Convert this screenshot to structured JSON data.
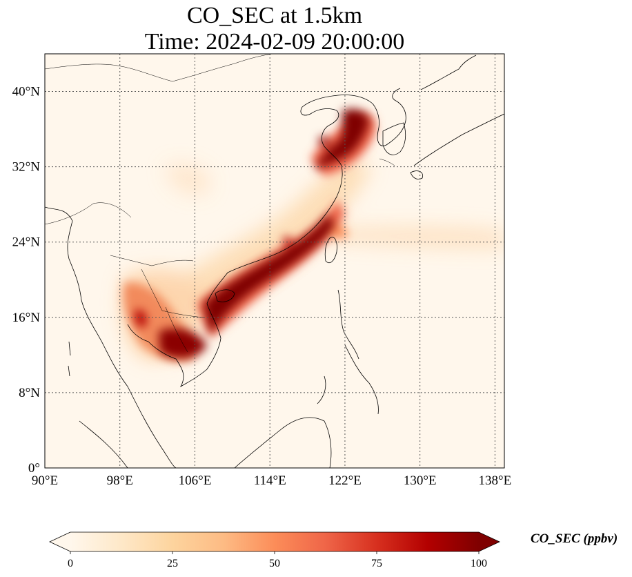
{
  "title": {
    "line1": "CO_SEC at 1.5km",
    "line2": "Time: 2024-02-09 20:00:00"
  },
  "map": {
    "variable": "CO_SEC",
    "level": "1.5km",
    "lon_range": [
      90,
      139
    ],
    "lat_range": [
      0,
      44
    ],
    "lon_ticks": [
      {
        "value": 90,
        "label": "90°E"
      },
      {
        "value": 98,
        "label": "98°E"
      },
      {
        "value": 106,
        "label": "106°E"
      },
      {
        "value": 114,
        "label": "114°E"
      },
      {
        "value": 122,
        "label": "122°E"
      },
      {
        "value": 130,
        "label": "130°E"
      },
      {
        "value": 138,
        "label": "138°E"
      }
    ],
    "lat_ticks": [
      {
        "value": 0,
        "label": "0°"
      },
      {
        "value": 8,
        "label": "8°N"
      },
      {
        "value": 16,
        "label": "16°N"
      },
      {
        "value": 24,
        "label": "24°N"
      },
      {
        "value": 32,
        "label": "32°N"
      },
      {
        "value": 40,
        "label": "40°N"
      }
    ],
    "gridlines": "dotted",
    "plumes": [
      {
        "region": "South China / Gulf of Tonkin plume",
        "lon": 112,
        "lat": 21,
        "level": 100
      },
      {
        "region": "Indochina / Cambodia",
        "lon": 104,
        "lat": 14,
        "level": 100
      },
      {
        "region": "Northern Thailand / Laos",
        "lon": 100,
        "lat": 18,
        "level": 80
      },
      {
        "region": "Shandong / Bohai",
        "lon": 119,
        "lat": 36,
        "level": 100
      },
      {
        "region": "Korea west coast",
        "lon": 125,
        "lat": 37,
        "level": 100
      },
      {
        "region": "Taiwan Strait",
        "lon": 120,
        "lat": 25,
        "level": 60
      },
      {
        "region": "East China outflow",
        "lon": 130,
        "lat": 25,
        "level": 20
      }
    ]
  },
  "colorbar": {
    "label": "CO_SEC (ppbv)",
    "min": 0,
    "max": 100,
    "extend": "both",
    "colormap": "OrRd",
    "colors": [
      "#fff7ec",
      "#fee8c8",
      "#fdd49e",
      "#fdbb84",
      "#fc8d59",
      "#ef6548",
      "#d7301f",
      "#b30000",
      "#7f0000"
    ],
    "ticks": [
      {
        "value": 0,
        "label": "0"
      },
      {
        "value": 25,
        "label": "25"
      },
      {
        "value": 50,
        "label": "50"
      },
      {
        "value": 75,
        "label": "75"
      },
      {
        "value": 100,
        "label": "100"
      }
    ]
  }
}
